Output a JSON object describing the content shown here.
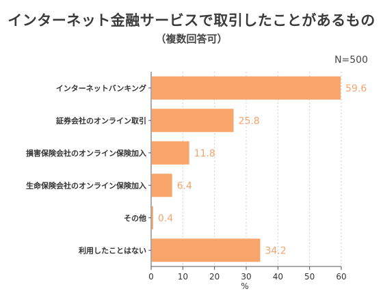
{
  "title": "インターネット金融サービスで取引したことがあるもの",
  "subtitle": "（複数回答可）",
  "note": "N=500",
  "colors": {
    "bar": "#f7a56b",
    "value_label": "#f4a46b",
    "grid": "#cfcfcf",
    "axis": "#555555"
  },
  "chart_data": {
    "type": "bar",
    "orientation": "horizontal",
    "categories": [
      "インターネットバンキング",
      "証券会社のオンライン取引",
      "損害保険会社のオンライン保険加入",
      "生命保険会社のオンライン保険加入",
      "その他",
      "利用したことはない"
    ],
    "values": [
      59.6,
      25.8,
      11.8,
      6.4,
      0.4,
      34.2
    ],
    "value_labels": [
      "59.6",
      "25.8",
      "11.8",
      "6.4",
      "0.4",
      "34.2"
    ],
    "xlim": [
      0,
      60
    ],
    "xticks": [
      "0",
      "10",
      "20",
      "30",
      "40",
      "50",
      "60"
    ],
    "xlabel": "%",
    "grid": true
  }
}
